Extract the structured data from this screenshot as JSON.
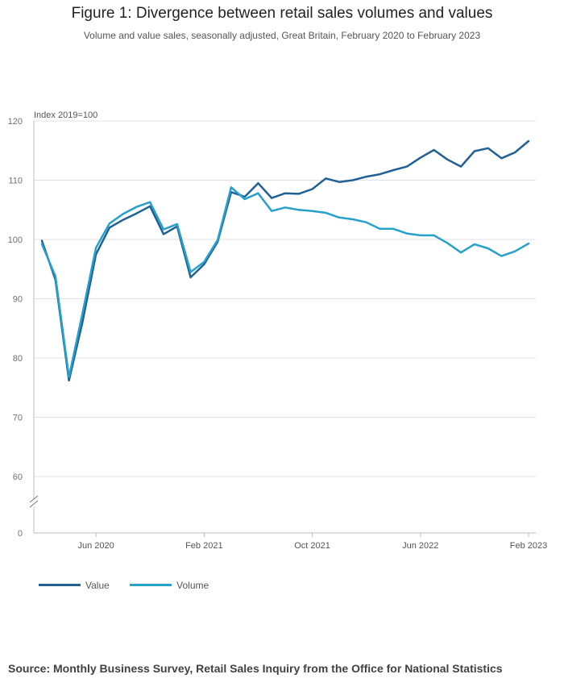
{
  "title": "Figure 1: Divergence between retail sales volumes and values",
  "subtitle": "Volume and value sales, seasonally adjusted, Great Britain, February 2020 to February 2023",
  "source": "Source: Monthly Business Survey, Retail Sales Inquiry from the Office for National Statistics",
  "chart_data": {
    "type": "line",
    "ylabel": "Index 2019=100",
    "xlabel": "",
    "ylim": [
      0,
      120
    ],
    "axis_break": [
      0,
      60
    ],
    "yticks": [
      0,
      60,
      70,
      80,
      90,
      100,
      110,
      120
    ],
    "x": [
      "Feb 2020",
      "Mar 2020",
      "Apr 2020",
      "May 2020",
      "Jun 2020",
      "Jul 2020",
      "Aug 2020",
      "Sep 2020",
      "Oct 2020",
      "Nov 2020",
      "Dec 2020",
      "Jan 2021",
      "Feb 2021",
      "Mar 2021",
      "Apr 2021",
      "May 2021",
      "Jun 2021",
      "Jul 2021",
      "Aug 2021",
      "Sep 2021",
      "Oct 2021",
      "Nov 2021",
      "Dec 2021",
      "Jan 2022",
      "Feb 2022",
      "Mar 2022",
      "Apr 2022",
      "May 2022",
      "Jun 2022",
      "Jul 2022",
      "Aug 2022",
      "Sep 2022",
      "Oct 2022",
      "Nov 2022",
      "Dec 2022",
      "Jan 2023",
      "Feb 2023"
    ],
    "xticks": [
      {
        "index": 4,
        "label": "Jun 2020"
      },
      {
        "index": 12,
        "label": "Feb 2021"
      },
      {
        "index": 20,
        "label": "Oct 2021"
      },
      {
        "index": 28,
        "label": "Jun 2022"
      },
      {
        "index": 36,
        "label": "Feb 2023"
      }
    ],
    "grid": true,
    "legend_position": "bottom-left",
    "series": [
      {
        "name": "Value",
        "color": "#206095",
        "values": [
          99.8,
          93.2,
          76.2,
          86.0,
          97.5,
          102.0,
          103.3,
          104.4,
          105.6,
          100.9,
          102.2,
          93.6,
          95.8,
          99.6,
          108.0,
          107.2,
          109.5,
          107.0,
          107.8,
          107.7,
          108.5,
          110.3,
          109.7,
          110.0,
          110.6,
          111.0,
          111.7,
          112.3,
          113.8,
          115.1,
          113.5,
          112.3,
          114.9,
          115.4,
          113.7,
          114.7,
          116.6
        ]
      },
      {
        "name": "Volume",
        "color": "#27A0CC",
        "values": [
          99.2,
          93.8,
          76.8,
          87.5,
          98.6,
          102.7,
          104.3,
          105.5,
          106.3,
          101.7,
          102.6,
          94.5,
          96.2,
          99.9,
          108.8,
          106.8,
          107.8,
          104.8,
          105.4,
          105.0,
          104.8,
          104.5,
          103.7,
          103.4,
          102.9,
          101.8,
          101.8,
          101.0,
          100.7,
          100.7,
          99.4,
          97.8,
          99.2,
          98.5,
          97.2,
          98.0,
          99.3
        ]
      }
    ]
  }
}
